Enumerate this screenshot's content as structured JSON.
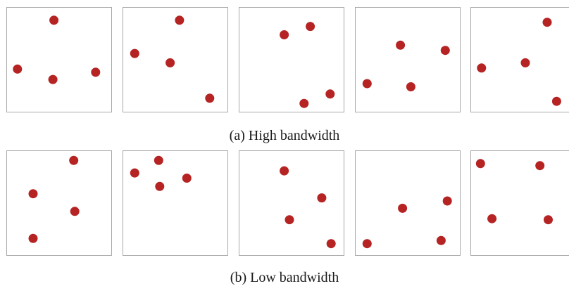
{
  "colors": {
    "point": "#b52323",
    "frame": "#a8a8a8",
    "background": "#ffffff"
  },
  "figure": {
    "subfigures": [
      {
        "caption": "(a) High bandwidth",
        "panels": [
          [
            [
              0.45,
              0.12
            ],
            [
              0.1,
              0.59
            ],
            [
              0.44,
              0.69
            ],
            [
              0.85,
              0.62
            ]
          ],
          [
            [
              0.54,
              0.12
            ],
            [
              0.11,
              0.44
            ],
            [
              0.45,
              0.53
            ],
            [
              0.83,
              0.87
            ]
          ],
          [
            [
              0.43,
              0.26
            ],
            [
              0.68,
              0.18
            ],
            [
              0.62,
              0.92
            ],
            [
              0.87,
              0.83
            ]
          ],
          [
            [
              0.43,
              0.36
            ],
            [
              0.86,
              0.41
            ],
            [
              0.11,
              0.73
            ],
            [
              0.53,
              0.76
            ]
          ],
          [
            [
              0.73,
              0.14
            ],
            [
              0.1,
              0.58
            ],
            [
              0.52,
              0.53
            ],
            [
              0.82,
              0.9
            ]
          ]
        ]
      },
      {
        "caption": "(b) Low bandwidth",
        "panels": [
          [
            [
              0.64,
              0.09
            ],
            [
              0.25,
              0.41
            ],
            [
              0.65,
              0.58
            ],
            [
              0.25,
              0.84
            ]
          ],
          [
            [
              0.34,
              0.09
            ],
            [
              0.11,
              0.21
            ],
            [
              0.35,
              0.34
            ],
            [
              0.61,
              0.26
            ]
          ],
          [
            [
              0.43,
              0.19
            ],
            [
              0.79,
              0.45
            ],
            [
              0.48,
              0.66
            ],
            [
              0.88,
              0.89
            ]
          ],
          [
            [
              0.11,
              0.89
            ],
            [
              0.45,
              0.55
            ],
            [
              0.82,
              0.86
            ],
            [
              0.88,
              0.48
            ]
          ],
          [
            [
              0.09,
              0.12
            ],
            [
              0.66,
              0.14
            ],
            [
              0.2,
              0.65
            ],
            [
              0.74,
              0.66
            ]
          ]
        ]
      }
    ]
  }
}
